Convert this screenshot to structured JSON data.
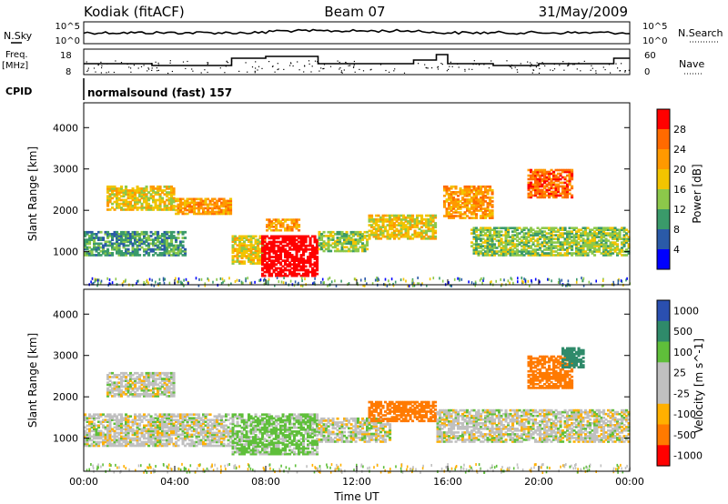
{
  "header": {
    "station": "Kodiak (fitACF)",
    "beam": "Beam 07",
    "date": "31/May/2009"
  },
  "strip": {
    "nsky_label": "N.Sky",
    "nsearch_label": "N.Search",
    "freq_label_1": "Freq.",
    "freq_label_2": "[MHz]",
    "nave_label": "Nave",
    "cpid_label": "CPID",
    "cpid_value": "normalsound (fast) 157",
    "noise_ticks_left": [
      "10^5",
      "10^0"
    ],
    "noise_ticks_right": [
      "10^5",
      "10^0"
    ],
    "freq_ticks": [
      "18",
      "8"
    ],
    "nave_ticks": [
      "60",
      "0"
    ]
  },
  "power_colorbar": {
    "label": "Power [dB]",
    "ticks": [
      "28",
      "24",
      "20",
      "16",
      "12",
      "8",
      "4"
    ],
    "colors": [
      "#ff0000",
      "#ff6a00",
      "#ff9900",
      "#f2c400",
      "#8cc84a",
      "#3a9a6a",
      "#2a5aa8",
      "#0000ff"
    ]
  },
  "velocity_colorbar": {
    "label": "Velocity [m s^-1]",
    "ticks": [
      "1000",
      "500",
      "100",
      "25",
      "-25",
      "-100",
      "-500",
      "-1000"
    ],
    "colors": [
      "#2a4fb0",
      "#2f8a6a",
      "#5fbf3a",
      "#c0c0c0",
      "#c0c0c0",
      "#ffb000",
      "#ff7a00",
      "#ff0000"
    ]
  },
  "chart_data": [
    {
      "type": "heatmap",
      "title": "",
      "xlabel": "Time UT",
      "ylabel": "Slant Range [km]",
      "xlim": [
        0,
        24
      ],
      "ylim": [
        200,
        4600
      ],
      "x_ticks": [
        "00:00",
        "04:00",
        "08:00",
        "12:00",
        "16:00",
        "20:00",
        "00:00"
      ],
      "y_ticks": [
        "1000",
        "2000",
        "3000",
        "4000"
      ],
      "regions": [
        {
          "t0": 0.0,
          "t1": 4.5,
          "r0": 900,
          "r1": 1500,
          "value": 8
        },
        {
          "t0": 1.0,
          "t1": 4.0,
          "r0": 2000,
          "r1": 2600,
          "value": 16
        },
        {
          "t0": 4.0,
          "t1": 6.5,
          "r0": 1900,
          "r1": 2300,
          "value": 20
        },
        {
          "t0": 6.5,
          "t1": 8.0,
          "r0": 700,
          "r1": 1400,
          "value": 16
        },
        {
          "t0": 7.8,
          "t1": 10.3,
          "r0": 400,
          "r1": 1400,
          "value": 30
        },
        {
          "t0": 8.0,
          "t1": 9.5,
          "r0": 1500,
          "r1": 1800,
          "value": 20
        },
        {
          "t0": 10.3,
          "t1": 12.5,
          "r0": 1000,
          "r1": 1500,
          "value": 12
        },
        {
          "t0": 12.5,
          "t1": 15.5,
          "r0": 1300,
          "r1": 1900,
          "value": 16
        },
        {
          "t0": 15.8,
          "t1": 18.0,
          "r0": 1800,
          "r1": 2600,
          "value": 20
        },
        {
          "t0": 17.0,
          "t1": 24.0,
          "r0": 900,
          "r1": 1600,
          "value": 12
        },
        {
          "t0": 19.5,
          "t1": 21.5,
          "r0": 2300,
          "r1": 3000,
          "value": 24
        }
      ]
    },
    {
      "type": "heatmap",
      "title": "",
      "xlabel": "Time UT",
      "ylabel": "Slant Range [km]",
      "xlim": [
        0,
        24
      ],
      "ylim": [
        200,
        4600
      ],
      "x_ticks": [
        "00:00",
        "04:00",
        "08:00",
        "12:00",
        "16:00",
        "20:00",
        "00:00"
      ],
      "y_ticks": [
        "1000",
        "2000",
        "3000",
        "4000"
      ],
      "regions": [
        {
          "t0": 0.0,
          "t1": 6.5,
          "r0": 800,
          "r1": 1600,
          "value": 0
        },
        {
          "t0": 1.0,
          "t1": 4.0,
          "r0": 2000,
          "r1": 2600,
          "value": 0
        },
        {
          "t0": 6.5,
          "t1": 10.3,
          "r0": 600,
          "r1": 1600,
          "value": 100
        },
        {
          "t0": 10.3,
          "t1": 13.5,
          "r0": 900,
          "r1": 1500,
          "value": 0
        },
        {
          "t0": 12.5,
          "t1": 15.5,
          "r0": 1400,
          "r1": 1900,
          "value": -500
        },
        {
          "t0": 15.5,
          "t1": 24.0,
          "r0": 900,
          "r1": 1700,
          "value": 0
        },
        {
          "t0": 19.5,
          "t1": 21.5,
          "r0": 2200,
          "r1": 3000,
          "value": -500
        },
        {
          "t0": 21.0,
          "t1": 22.0,
          "r0": 2700,
          "r1": 3200,
          "value": 500
        }
      ]
    }
  ]
}
